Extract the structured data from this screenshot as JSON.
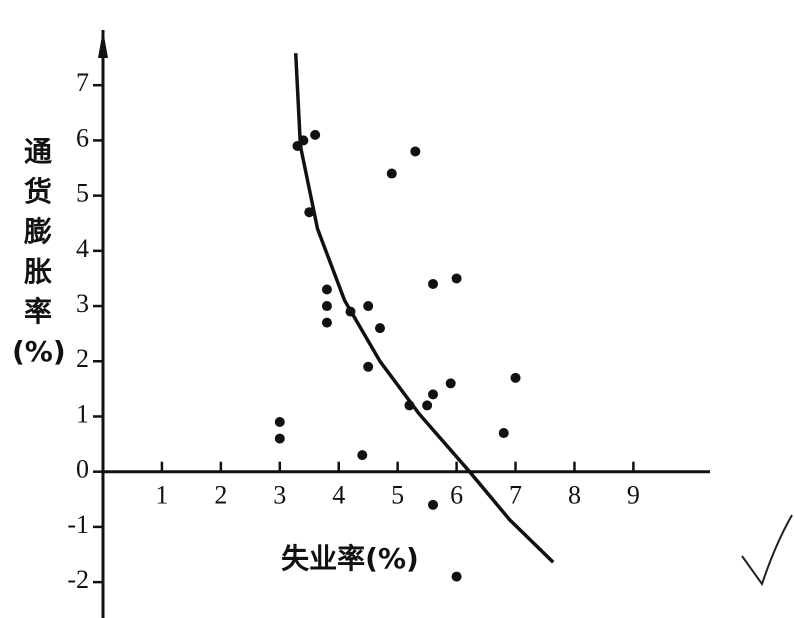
{
  "chart_data": {
    "type": "scatter",
    "x_label": "失业率(%)",
    "y_label": "通货膨胀率(%)",
    "xlim": [
      0,
      10.3
    ],
    "ylim": [
      -2.65,
      8.0
    ],
    "xticks": [
      1,
      2,
      3,
      4,
      5,
      6,
      7,
      8,
      9
    ],
    "yticks": [
      -2,
      -1,
      0,
      1,
      2,
      3,
      4,
      5,
      6,
      7
    ],
    "color": "#111111",
    "points": {
      "x": [
        3.0,
        3.0,
        3.3,
        3.4,
        3.6,
        3.5,
        3.8,
        3.8,
        3.8,
        4.2,
        4.5,
        4.7,
        4.5,
        4.4,
        4.9,
        5.3,
        5.2,
        5.6,
        5.6,
        5.5,
        5.9,
        6.0,
        5.6,
        6.0,
        6.8,
        7.0
      ],
      "y": [
        0.9,
        0.6,
        5.9,
        6.0,
        6.1,
        4.7,
        3.3,
        3.0,
        2.7,
        2.9,
        3.0,
        2.6,
        1.9,
        0.3,
        5.4,
        5.8,
        1.2,
        3.4,
        1.4,
        1.2,
        1.6,
        3.5,
        -0.6,
        -1.9,
        0.7,
        1.7
      ]
    },
    "curve": {
      "x": [
        3.27,
        3.35,
        3.64,
        4.1,
        4.7,
        5.37,
        6.22,
        6.9,
        7.64
      ],
      "y": [
        7.58,
        5.9,
        4.4,
        3.1,
        2.0,
        1.04,
        0.0,
        -0.87,
        -1.64
      ]
    }
  }
}
